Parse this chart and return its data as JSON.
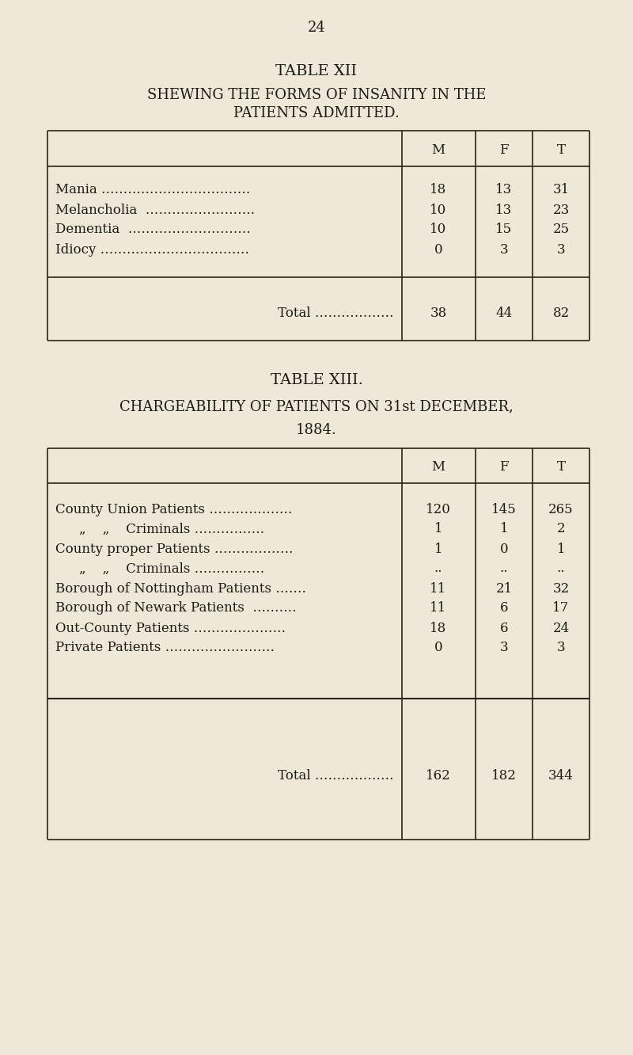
{
  "bg_color": "#ede8d8",
  "page_number": "24",
  "text_color": "#1e1a12",
  "line_color": "#2a2418",
  "table1": {
    "title1": "TABLE XII",
    "title2": "SHEWING THE FORMS OF INSANITY IN THE",
    "title3": "PATIENTS ADMITTED.",
    "col_headers": [
      "M",
      "F",
      "T"
    ],
    "row_labels": [
      "Mania …………………………….",
      "Melancholia  …………………….",
      "Dementia  ……………………….",
      "Idiocy ……………………………."
    ],
    "row_m": [
      "18",
      "10",
      "10",
      "0"
    ],
    "row_f": [
      "13",
      "13",
      "15",
      "3"
    ],
    "row_t": [
      "31",
      "23",
      "25",
      "3"
    ],
    "total_label": "Total ………………",
    "total_m": "38",
    "total_f": "44",
    "total_t": "82"
  },
  "table2": {
    "title1": "TABLE XIII.",
    "title2": "CHARGEABILITY OF PATIENTS ON 31st DECEMBER,",
    "title3": "1884.",
    "col_headers": [
      "M",
      "F",
      "T"
    ],
    "row_labels": [
      "County Union Patients ……………….",
      "„    „    Criminals …………….",
      "County proper Patients ………………",
      "„    „    Criminals …………….",
      "Borough of Nottingham Patients …….",
      "Borough of Newark Patients  ……….",
      "Out-County Patients …………………",
      "Private Patients ……………………."
    ],
    "row_m": [
      "120",
      "1",
      "1",
      "..",
      "11",
      "11",
      "18",
      "0"
    ],
    "row_f": [
      "145",
      "1",
      "0",
      "..",
      "21",
      "6",
      "6",
      "3"
    ],
    "row_t": [
      "265",
      "2",
      "1",
      "..",
      "32",
      "17",
      "24",
      "3"
    ],
    "total_label": "Total ………………",
    "total_m": "162",
    "total_f": "182",
    "total_t": "344"
  }
}
